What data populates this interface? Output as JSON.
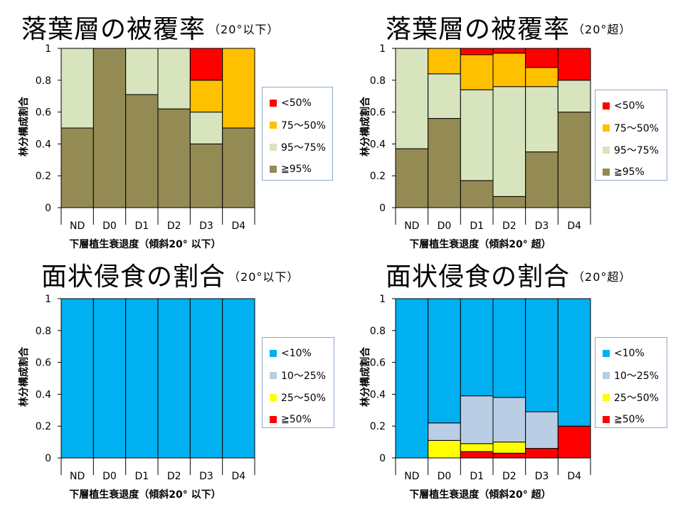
{
  "colors": {
    "red": "#ff0000",
    "orange": "#ffc000",
    "lightgreen": "#d7e4bd",
    "olive": "#948a54",
    "blue": "#00b0f0",
    "lightblue": "#b9cde5",
    "yellow": "#ffff00"
  },
  "chart_data": [
    {
      "type": "bar",
      "stacked": true,
      "title": "落葉層の被覆率",
      "subtitle": "（20°以下）",
      "xlabel": "下層植生衰退度（傾斜20° 以下）",
      "ylabel": "林分構成割合",
      "ylim": [
        0,
        1
      ],
      "yticks": [
        "0",
        "0.2",
        "0.4",
        "0.6",
        "0.8",
        "1"
      ],
      "legend_position": "right",
      "categories": [
        "ND",
        "D0",
        "D1",
        "D2",
        "D3",
        "D4"
      ],
      "series": [
        {
          "name": "≧95%",
          "color": "#948a54",
          "values": [
            0.5,
            1.0,
            0.71,
            0.62,
            0.4,
            0.5
          ]
        },
        {
          "name": "95～75%",
          "color": "#d7e4bd",
          "values": [
            0.5,
            0.0,
            0.29,
            0.38,
            0.2,
            0.0
          ]
        },
        {
          "name": "75～50%",
          "color": "#ffc000",
          "values": [
            0.0,
            0.0,
            0.0,
            0.0,
            0.2,
            0.5
          ]
        },
        {
          "name": "<50%",
          "color": "#ff0000",
          "values": [
            0.0,
            0.0,
            0.0,
            0.0,
            0.2,
            0.0
          ]
        }
      ]
    },
    {
      "type": "bar",
      "stacked": true,
      "title": "落葉層の被覆率",
      "subtitle": "（20°超）",
      "xlabel": "下層植生衰退度（傾斜20° 超）",
      "ylabel": "林分構成割合",
      "ylim": [
        0,
        1
      ],
      "yticks": [
        "0",
        "0.2",
        "0.4",
        "0.6",
        "0.8",
        "1"
      ],
      "legend_position": "right",
      "categories": [
        "ND",
        "D0",
        "D1",
        "D2",
        "D3",
        "D4"
      ],
      "series": [
        {
          "name": "≧95%",
          "color": "#948a54",
          "values": [
            0.37,
            0.56,
            0.17,
            0.07,
            0.35,
            0.6
          ]
        },
        {
          "name": "95～75%",
          "color": "#d7e4bd",
          "values": [
            0.63,
            0.28,
            0.57,
            0.69,
            0.41,
            0.2
          ]
        },
        {
          "name": "75～50%",
          "color": "#ffc000",
          "values": [
            0.0,
            0.16,
            0.22,
            0.21,
            0.12,
            0.0
          ]
        },
        {
          "name": "<50%",
          "color": "#ff0000",
          "values": [
            0.0,
            0.0,
            0.04,
            0.03,
            0.12,
            0.2
          ]
        }
      ]
    },
    {
      "type": "bar",
      "stacked": true,
      "title": "面状侵食の割合",
      "subtitle": "（20°以下）",
      "xlabel": "下層植生衰退度（傾斜20° 以下）",
      "ylabel": "林分構成割合",
      "ylim": [
        0,
        1
      ],
      "yticks": [
        "0",
        "0.2",
        "0.4",
        "0.6",
        "0.8",
        "1"
      ],
      "legend_position": "right",
      "categories": [
        "ND",
        "D0",
        "D1",
        "D2",
        "D3",
        "D4"
      ],
      "series": [
        {
          "name": "≧50%",
          "color": "#ff0000",
          "values": [
            0,
            0,
            0,
            0,
            0,
            0
          ]
        },
        {
          "name": "25～50%",
          "color": "#ffff00",
          "values": [
            0,
            0,
            0,
            0,
            0,
            0
          ]
        },
        {
          "name": "10～25%",
          "color": "#b9cde5",
          "values": [
            0,
            0,
            0,
            0,
            0,
            0
          ]
        },
        {
          "name": "<10%",
          "color": "#00b0f0",
          "values": [
            1,
            1,
            1,
            1,
            1,
            1
          ]
        }
      ]
    },
    {
      "type": "bar",
      "stacked": true,
      "title": "面状侵食の割合",
      "subtitle": "（20°超）",
      "xlabel": "下層植生衰退度（傾斜20° 超）",
      "ylabel": "林分構成割合",
      "ylim": [
        0,
        1
      ],
      "yticks": [
        "0",
        "0.2",
        "0.4",
        "0.6",
        "0.8",
        "1"
      ],
      "legend_position": "right",
      "categories": [
        "ND",
        "D0",
        "D1",
        "D2",
        "D3",
        "D4"
      ],
      "series": [
        {
          "name": "≧50%",
          "color": "#ff0000",
          "values": [
            0.0,
            0.0,
            0.04,
            0.03,
            0.06,
            0.2
          ]
        },
        {
          "name": "25～50%",
          "color": "#ffff00",
          "values": [
            0.0,
            0.11,
            0.05,
            0.07,
            0.0,
            0.0
          ]
        },
        {
          "name": "10～25%",
          "color": "#b9cde5",
          "values": [
            0.0,
            0.11,
            0.3,
            0.28,
            0.23,
            0.0
          ]
        },
        {
          "name": "<10%",
          "color": "#00b0f0",
          "values": [
            1.0,
            0.78,
            0.61,
            0.62,
            0.71,
            0.8
          ]
        }
      ]
    }
  ],
  "legends": [
    [
      "<50%",
      "75～50%",
      "95～75%",
      "≧95%"
    ],
    [
      "<50%",
      "75～50%",
      "95～75%",
      "≧95%"
    ],
    [
      "<10%",
      "10～25%",
      "25～50%",
      "≧50%"
    ],
    [
      "<10%",
      "10～25%",
      "25～50%",
      "≧50%"
    ]
  ],
  "legend_colors": [
    [
      "#ff0000",
      "#ffc000",
      "#d7e4bd",
      "#948a54"
    ],
    [
      "#ff0000",
      "#ffc000",
      "#d7e4bd",
      "#948a54"
    ],
    [
      "#00b0f0",
      "#b9cde5",
      "#ffff00",
      "#ff0000"
    ],
    [
      "#00b0f0",
      "#b9cde5",
      "#ffff00",
      "#ff0000"
    ]
  ]
}
